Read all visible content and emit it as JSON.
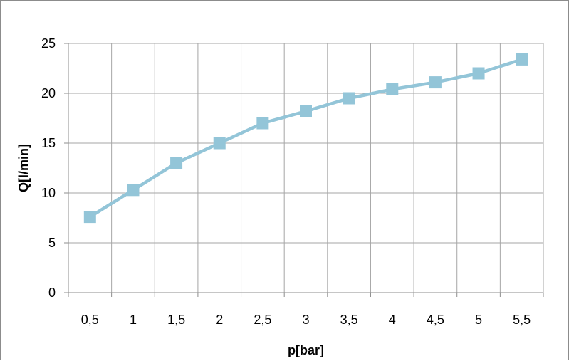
{
  "chart_data": {
    "type": "line",
    "title": "",
    "xlabel": "p[bar]",
    "ylabel": "Q[l/min]",
    "categories": [
      "0,5",
      "1",
      "1,5",
      "2",
      "2,5",
      "3",
      "3,5",
      "4",
      "4,5",
      "5",
      "5,5"
    ],
    "series": [
      {
        "values": [
          7.6,
          10.3,
          13.0,
          15.0,
          17.0,
          18.2,
          19.5,
          20.4,
          21.1,
          22.0,
          23.4
        ]
      }
    ],
    "ylim": [
      0,
      25
    ],
    "yticks": [
      "0",
      "5",
      "10",
      "15",
      "20",
      "25"
    ],
    "grid": true,
    "legend": "none",
    "marker": "square",
    "colors": {
      "series": "#93c5d8",
      "grid": "#a6a6a6",
      "axis": "#8c8c8c"
    }
  }
}
